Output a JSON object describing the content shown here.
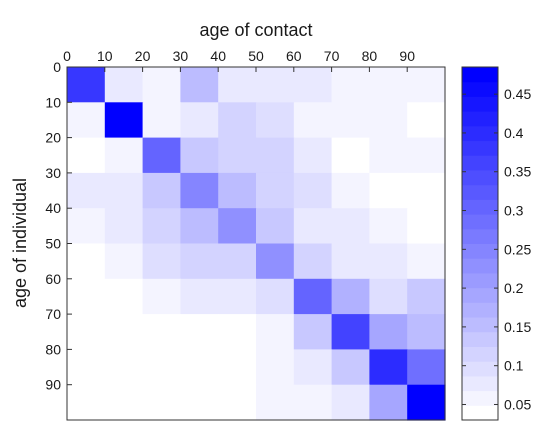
{
  "chart_data": {
    "type": "heatmap",
    "xlabel": "age of contact",
    "ylabel": "age of individual",
    "x_tick_labels": [
      "0",
      "10",
      "20",
      "30",
      "40",
      "50",
      "60",
      "70",
      "80",
      "90"
    ],
    "y_tick_labels": [
      "0",
      "10",
      "20",
      "30",
      "40",
      "50",
      "60",
      "70",
      "80",
      "90"
    ],
    "x_axis_position": "top",
    "x_range": [
      0,
      100
    ],
    "y_range": [
      0,
      100
    ],
    "bin_size": 10,
    "colorbar": {
      "range": [
        0.03,
        0.485
      ],
      "ticks": [
        "0.05",
        "0.1",
        "0.15",
        "0.2",
        "0.25",
        "0.3",
        "0.35",
        "0.4",
        "0.45"
      ],
      "tick_values": [
        0.05,
        0.1,
        0.15,
        0.2,
        0.25,
        0.3,
        0.35,
        0.4,
        0.45
      ],
      "color_min": "#ffffff",
      "color_max": "#0000ff",
      "levels": 24,
      "placement": "right"
    },
    "matrix": [
      [
        0.38,
        0.07,
        0.05,
        0.15,
        0.07,
        0.07,
        0.07,
        0.05,
        0.05,
        0.05
      ],
      [
        0.05,
        0.48,
        0.06,
        0.07,
        0.11,
        0.1,
        0.05,
        0.05,
        0.05,
        0.03
      ],
      [
        0.03,
        0.06,
        0.3,
        0.14,
        0.11,
        0.11,
        0.07,
        0.03,
        0.05,
        0.05
      ],
      [
        0.07,
        0.07,
        0.14,
        0.24,
        0.16,
        0.11,
        0.09,
        0.05,
        0.03,
        0.03
      ],
      [
        0.05,
        0.07,
        0.11,
        0.16,
        0.22,
        0.14,
        0.07,
        0.07,
        0.05,
        0.03
      ],
      [
        0.03,
        0.05,
        0.09,
        0.11,
        0.11,
        0.22,
        0.11,
        0.07,
        0.07,
        0.05
      ],
      [
        0.03,
        0.03,
        0.05,
        0.07,
        0.07,
        0.09,
        0.3,
        0.18,
        0.09,
        0.14
      ],
      [
        0.03,
        0.03,
        0.03,
        0.03,
        0.03,
        0.05,
        0.14,
        0.36,
        0.2,
        0.16
      ],
      [
        0.03,
        0.03,
        0.03,
        0.03,
        0.03,
        0.05,
        0.07,
        0.14,
        0.4,
        0.28
      ],
      [
        0.03,
        0.03,
        0.03,
        0.03,
        0.03,
        0.05,
        0.05,
        0.07,
        0.2,
        0.49
      ]
    ]
  }
}
